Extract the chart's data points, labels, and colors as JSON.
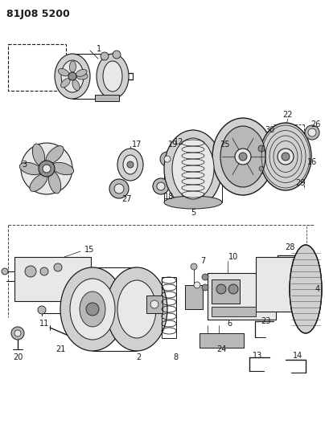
{
  "title": "81J08 5200",
  "bg_color": "#ffffff",
  "title_fontsize": 9,
  "title_weight": "bold",
  "fig_width": 4.04,
  "fig_height": 5.33,
  "dpi": 100,
  "lc": "#1a1a1a",
  "gray1": "#d0d0d0",
  "gray2": "#b8b8b8",
  "gray3": "#e8e8e8",
  "gray4": "#909090",
  "gray5": "#c0c0c0"
}
